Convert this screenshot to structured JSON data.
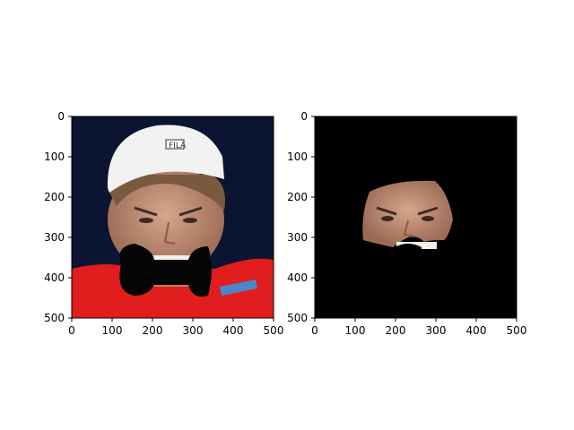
{
  "figure": {
    "panels": [
      {
        "name": "original-with-occluder",
        "image_description_icon": "face-photo-icon",
        "occluder_icon": "bowtie-icon",
        "xlim": [
          0,
          500
        ],
        "ylim": [
          500,
          0
        ],
        "xticks": [
          "0",
          "100",
          "200",
          "300",
          "400",
          "500"
        ],
        "yticks": [
          "0",
          "100",
          "200",
          "300",
          "400",
          "500"
        ]
      },
      {
        "name": "masked-face",
        "image_description_icon": "masked-face-icon",
        "xlim": [
          0,
          500
        ],
        "ylim": [
          500,
          0
        ],
        "xticks": [
          "0",
          "100",
          "200",
          "300",
          "400",
          "500"
        ],
        "yticks": [
          "0",
          "100",
          "200",
          "300",
          "400",
          "500"
        ]
      }
    ],
    "colors": {
      "background_left": "#0b1430",
      "shirt": "#e11d1d",
      "skin": "#c89478",
      "cap": "#f2f2f2",
      "mask_black": "#000000",
      "occluder": "#050505"
    }
  }
}
